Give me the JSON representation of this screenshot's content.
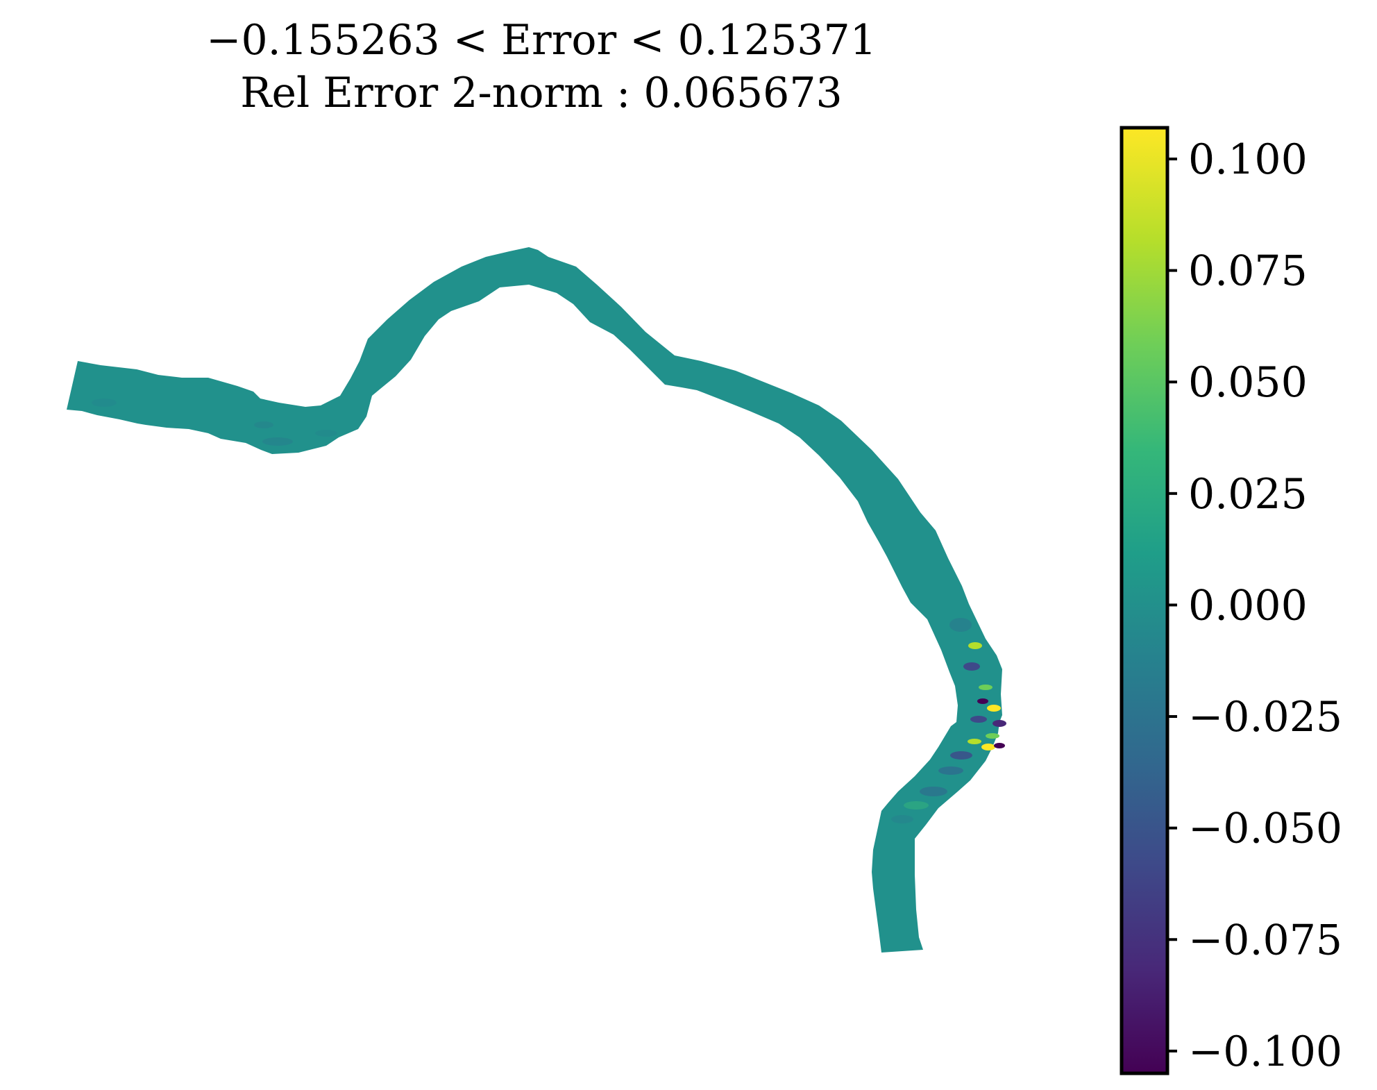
{
  "chart_data": {
    "type": "heatmap",
    "title_line1": "−0.155263 <  Error  < 0.125371",
    "title_line2": "Rel Error 2-norm : 0.065673",
    "error_min": -0.155263,
    "error_max": 0.125371,
    "rel_error_2norm": 0.065673,
    "colormap": "viridis",
    "colorbar": {
      "vmin": -0.105,
      "vmax": 0.107,
      "ticks": [
        0.1,
        0.075,
        0.05,
        0.025,
        0.0,
        -0.025,
        -0.05,
        -0.075,
        -0.1
      ],
      "tick_labels": [
        "0.100",
        "0.075",
        "0.050",
        "0.025",
        "0.000",
        "−0.025",
        "−0.050",
        "−0.075",
        "−0.100"
      ]
    },
    "axes": "off",
    "field_baseline_value": 0.0,
    "colors": {
      "field": "#21918c",
      "viridis": [
        "#440154",
        "#482878",
        "#3e4989",
        "#31688e",
        "#26828e",
        "#1f9e89",
        "#35b779",
        "#6ece58",
        "#b5de2b",
        "#fde725"
      ]
    }
  }
}
